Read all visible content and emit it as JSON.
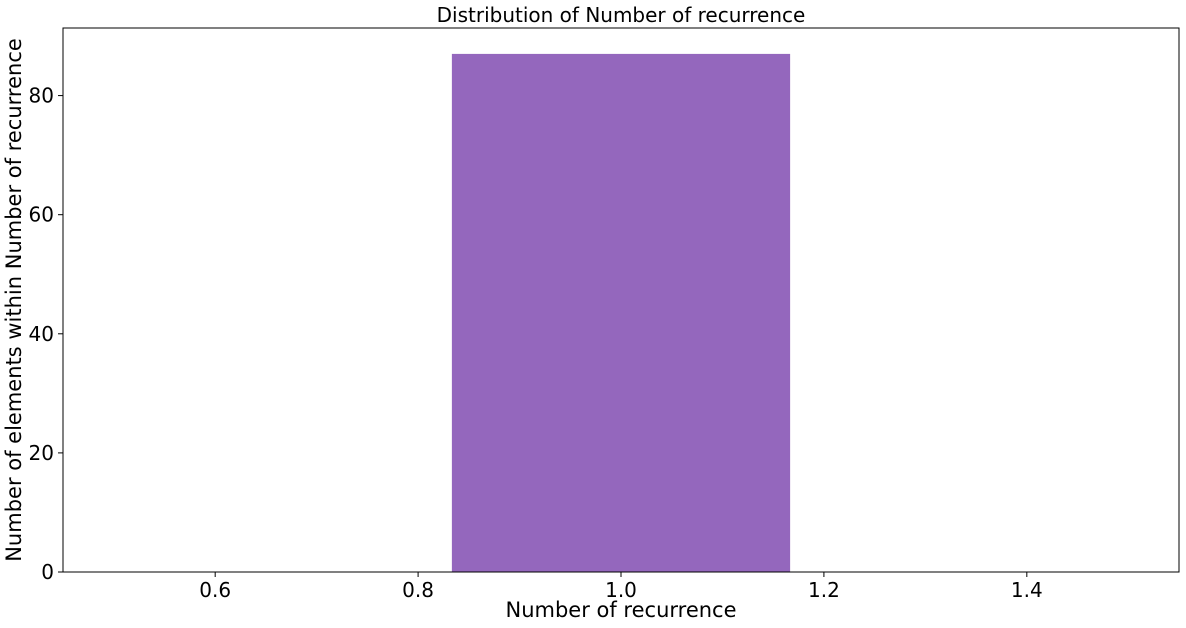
{
  "chart_data": {
    "type": "bar",
    "title": "Distribution of Number of recurrence",
    "xlabel": "Number of recurrence",
    "ylabel": "Number of elements within Number of recurrence",
    "bars": [
      {
        "x_start": 0.8333,
        "x_end": 1.1667,
        "value": 87
      }
    ],
    "xlim": [
      0.45,
      1.55
    ],
    "ylim": [
      0,
      91.35
    ],
    "x_ticks": [
      0.6,
      0.8,
      1.0,
      1.2,
      1.4
    ],
    "x_tick_labels": [
      "0.6",
      "0.8",
      "1.0",
      "1.2",
      "1.4"
    ],
    "y_ticks": [
      0,
      20,
      40,
      60,
      80
    ],
    "y_tick_labels": [
      "0",
      "20",
      "40",
      "60",
      "80"
    ],
    "bar_color": "#9467bd",
    "grid": false,
    "legend": "none"
  }
}
